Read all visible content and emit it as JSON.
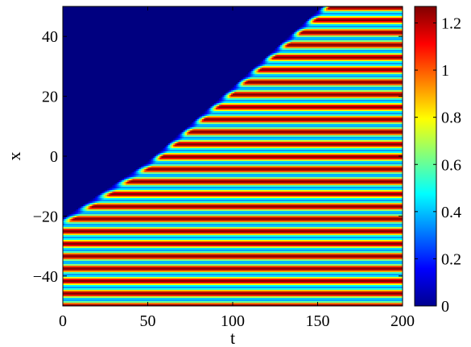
{
  "chart_data": {
    "type": "heatmap",
    "title": "",
    "xlabel": "t",
    "ylabel": "x",
    "xlim": [
      0,
      200
    ],
    "ylim": [
      -50,
      50
    ],
    "x_ticks": [
      0,
      50,
      100,
      150,
      200
    ],
    "x_tick_labels": [
      "0",
      "50",
      "100",
      "150",
      "200"
    ],
    "y_ticks": [
      -40,
      -20,
      0,
      20,
      40
    ],
    "y_tick_labels": [
      "−40",
      "−20",
      "0",
      "20",
      "40"
    ],
    "colorbar": {
      "colormap": "jet",
      "range": [
        0,
        1.27
      ],
      "ticks": [
        0,
        0.2,
        0.4,
        0.6,
        0.8,
        1,
        1.2
      ],
      "tick_labels": [
        "0",
        "0.2",
        "0.4",
        "0.6",
        "0.8",
        "1",
        "1.2"
      ]
    },
    "front": {
      "description_points": [
        [
          0,
          -22
        ],
        [
          50,
          -3
        ],
        [
          100,
          22
        ],
        [
          155,
          50
        ]
      ],
      "state_ahead_value": 0,
      "state_behind_min": 0.35,
      "state_behind_max": 1.27
    },
    "stripes": {
      "count_in_range": 24,
      "period_x": 4.15
    },
    "grid": false
  }
}
